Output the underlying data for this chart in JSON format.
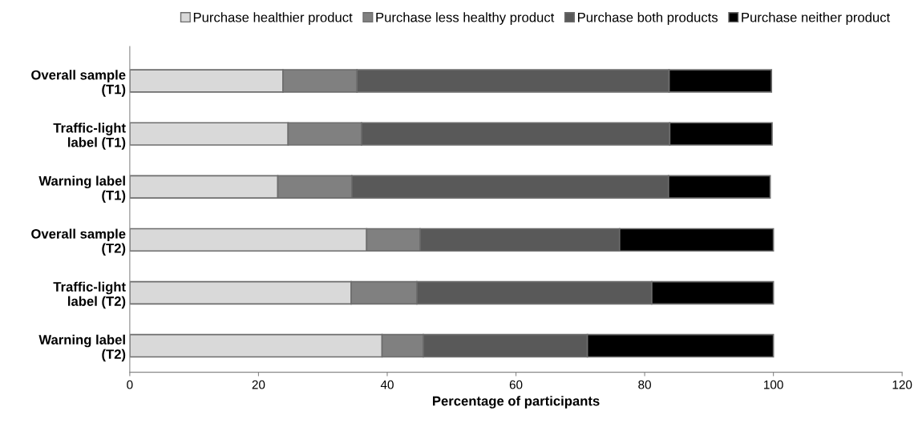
{
  "chart_data": {
    "type": "bar",
    "orientation": "horizontal",
    "stacked": true,
    "xlabel": "Percentage of participants",
    "categories": [
      "Overall sample\n(T1)",
      "Traffic-light\nlabel (T1)",
      "Warning label\n(T1)",
      "Overall sample\n(T2)",
      "Traffic-light\nlabel (T2)",
      "Warning label\n(T2)"
    ],
    "series": [
      {
        "name": "Purchase healthier product",
        "color": "#d9d9d9",
        "values": [
          23.8,
          24.6,
          23.0,
          36.8,
          34.4,
          39.2
        ]
      },
      {
        "name": "Purchase less healthy product",
        "color": "#808080",
        "values": [
          11.5,
          11.4,
          11.5,
          8.3,
          10.2,
          6.4
        ]
      },
      {
        "name": "Purchase both products",
        "color": "#595959",
        "values": [
          48.5,
          47.9,
          49.2,
          31.0,
          36.5,
          25.5
        ]
      },
      {
        "name": "Purchase neither product",
        "color": "#000000",
        "values": [
          15.9,
          15.9,
          15.8,
          23.9,
          18.9,
          28.9
        ]
      }
    ],
    "xlim": [
      0,
      120
    ],
    "xticks": [
      0,
      20,
      40,
      60,
      80,
      100,
      120
    ],
    "grid": false,
    "legend": "top"
  }
}
